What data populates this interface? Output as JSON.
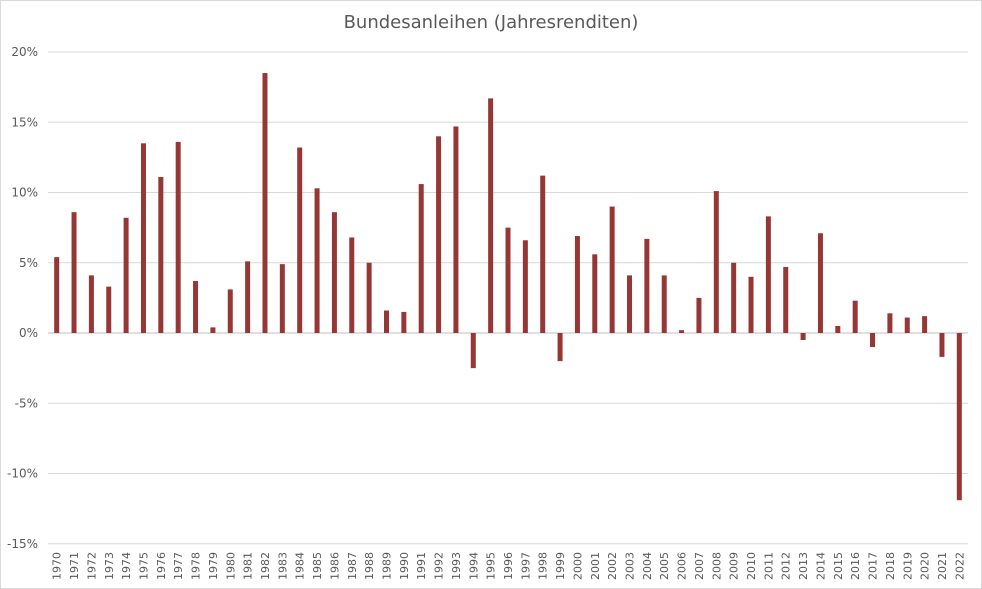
{
  "chart_data": {
    "type": "bar",
    "title": "Bundesanleihen (Jahresrenditen)",
    "xlabel": "",
    "ylabel": "",
    "ylim": [
      -15,
      20
    ],
    "yticks": [
      20,
      15,
      10,
      5,
      0,
      -5,
      -10,
      -15
    ],
    "ytick_labels": [
      "20%",
      "15%",
      "10%",
      "5%",
      "0%",
      "-5%",
      "-10%",
      "-15%"
    ],
    "grid": true,
    "bar_color": "#953735",
    "categories": [
      "1970",
      "1971",
      "1972",
      "1973",
      "1974",
      "1975",
      "1976",
      "1977",
      "1978",
      "1979",
      "1980",
      "1981",
      "1982",
      "1983",
      "1984",
      "1985",
      "1986",
      "1987",
      "1988",
      "1989",
      "1990",
      "1991",
      "1992",
      "1993",
      "1994",
      "1995",
      "1996",
      "1997",
      "1998",
      "1999",
      "2000",
      "2001",
      "2002",
      "2003",
      "2004",
      "2005",
      "2006",
      "2007",
      "2008",
      "2009",
      "2010",
      "2011",
      "2012",
      "2013",
      "2014",
      "2015",
      "2016",
      "2017",
      "2018",
      "2019",
      "2020",
      "2021",
      "2022"
    ],
    "values": [
      5.4,
      8.6,
      4.1,
      3.3,
      8.2,
      13.5,
      11.1,
      13.6,
      3.7,
      0.4,
      3.1,
      5.1,
      18.5,
      4.9,
      13.2,
      10.3,
      8.6,
      6.8,
      5.0,
      1.6,
      1.5,
      10.6,
      14.0,
      14.7,
      -2.5,
      16.7,
      7.5,
      6.6,
      11.2,
      -2.0,
      6.9,
      5.6,
      9.0,
      4.1,
      6.7,
      4.1,
      0.2,
      2.5,
      10.1,
      5.0,
      4.0,
      8.3,
      4.7,
      -0.5,
      7.1,
      0.5,
      2.3,
      -1.0,
      1.4,
      1.1,
      1.2,
      -1.7,
      -11.9
    ]
  }
}
